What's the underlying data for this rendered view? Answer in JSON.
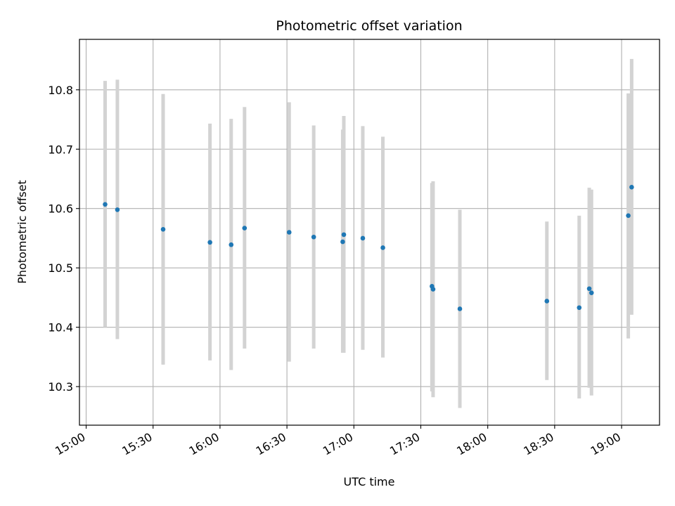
{
  "chart_data": {
    "type": "scatter",
    "title": "Photometric offset variation",
    "xlabel": "UTC time",
    "ylabel": "Photometric offset",
    "xlim": [
      "14:57",
      "19:17"
    ],
    "ylim": [
      10.235,
      10.885
    ],
    "x_ticks": [
      "15:00",
      "15:30",
      "16:00",
      "16:30",
      "17:00",
      "17:30",
      "18:00",
      "18:30",
      "19:00"
    ],
    "y_ticks": [
      "10.3",
      "10.4",
      "10.5",
      "10.6",
      "10.7",
      "10.8"
    ],
    "grid": true,
    "errorbar_color": "#d3d3d3",
    "point_color": "#1f77b4",
    "points": [
      {
        "x": "15:08:30",
        "y": 10.607,
        "ylow": 10.4,
        "yhigh": 10.815
      },
      {
        "x": "15:14:00",
        "y": 10.598,
        "ylow": 10.38,
        "yhigh": 10.817
      },
      {
        "x": "15:34:30",
        "y": 10.565,
        "ylow": 10.337,
        "yhigh": 10.793
      },
      {
        "x": "15:55:30",
        "y": 10.543,
        "ylow": 10.344,
        "yhigh": 10.743
      },
      {
        "x": "16:05:00",
        "y": 10.539,
        "ylow": 10.328,
        "yhigh": 10.751
      },
      {
        "x": "16:11:00",
        "y": 10.567,
        "ylow": 10.364,
        "yhigh": 10.771
      },
      {
        "x": "16:31:00",
        "y": 10.56,
        "ylow": 10.342,
        "yhigh": 10.779
      },
      {
        "x": "16:42:00",
        "y": 10.552,
        "ylow": 10.364,
        "yhigh": 10.74
      },
      {
        "x": "16:55:00",
        "y": 10.544,
        "ylow": 10.357,
        "yhigh": 10.733
      },
      {
        "x": "16:55:30",
        "y": 10.556,
        "ylow": 10.357,
        "yhigh": 10.756
      },
      {
        "x": "17:04:00",
        "y": 10.55,
        "ylow": 10.362,
        "yhigh": 10.739
      },
      {
        "x": "17:13:00",
        "y": 10.534,
        "ylow": 10.349,
        "yhigh": 10.721
      },
      {
        "x": "17:35:00",
        "y": 10.469,
        "ylow": 10.292,
        "yhigh": 10.643
      },
      {
        "x": "17:35:30",
        "y": 10.464,
        "ylow": 10.282,
        "yhigh": 10.646
      },
      {
        "x": "17:47:30",
        "y": 10.431,
        "ylow": 10.264,
        "yhigh": 10.598
      },
      {
        "x": "18:26:30",
        "y": 10.444,
        "ylow": 10.311,
        "yhigh": 10.578
      },
      {
        "x": "18:41:00",
        "y": 10.433,
        "ylow": 10.28,
        "yhigh": 10.588
      },
      {
        "x": "18:45:30",
        "y": 10.465,
        "ylow": 10.298,
        "yhigh": 10.635
      },
      {
        "x": "18:46:30",
        "y": 10.458,
        "ylow": 10.285,
        "yhigh": 10.632
      },
      {
        "x": "19:03:00",
        "y": 10.588,
        "ylow": 10.381,
        "yhigh": 10.794
      },
      {
        "x": "19:04:30",
        "y": 10.636,
        "ylow": 10.421,
        "yhigh": 10.852
      }
    ]
  }
}
